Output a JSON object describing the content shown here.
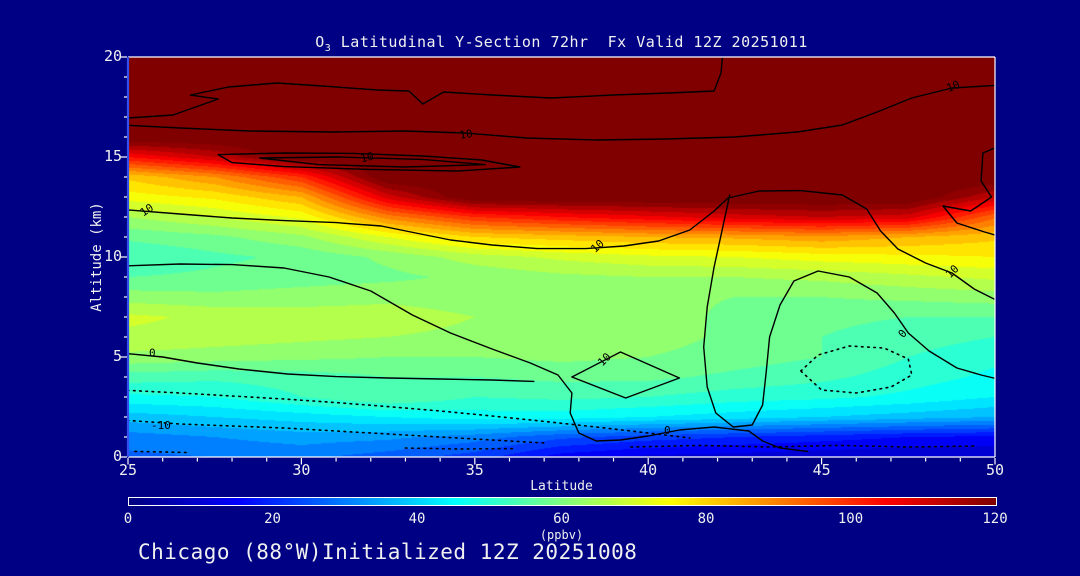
{
  "title": {
    "prefix": "O",
    "sub": "3",
    "rest": " Latitudinal Y-Section 72hr  Fx Valid 12Z 20251011"
  },
  "footer": {
    "text": "Chicago (88°W)Initialized 12Z 20251008"
  },
  "axes": {
    "x": {
      "label": "Latitude",
      "min": 25,
      "max": 50,
      "major_ticks": [
        25,
        30,
        35,
        40,
        45,
        50
      ],
      "minor_step": 1
    },
    "y": {
      "label": "Altitude (km)",
      "min": 0,
      "max": 20,
      "major_ticks": [
        0,
        5,
        10,
        15,
        20
      ],
      "minor_step": 1
    }
  },
  "colorbar": {
    "label": "(ppbv)",
    "min": 0,
    "max": 120,
    "ticks": [
      0,
      20,
      40,
      60,
      80,
      100,
      120
    ]
  },
  "colors": {
    "background": "#000084",
    "text": "#f0f0f0",
    "frame": "#ffffff",
    "left_axis_line": "#3350ef",
    "contour_line": "#000000",
    "tick": "#ffffff"
  },
  "chart_data": {
    "type": "heatmap",
    "title": "O3 Latitudinal Y-Section 72hr Fx Valid 12Z 20251011",
    "xlabel": "Latitude",
    "ylabel": "Altitude (km)",
    "units": "ppbv",
    "colormap": "jet",
    "clim": [
      0,
      120
    ],
    "band_step": 4,
    "x": [
      25,
      27.5,
      30,
      32.5,
      35,
      37.5,
      40,
      42.5,
      45,
      47.5,
      50
    ],
    "y": [
      0,
      1,
      2,
      3,
      4,
      5,
      6,
      7,
      8,
      9,
      10,
      11,
      12,
      13,
      14,
      15,
      16,
      17,
      18,
      19,
      20
    ],
    "values": [
      [
        27,
        28,
        29,
        26,
        22,
        14,
        11,
        10,
        9,
        8,
        8
      ],
      [
        30,
        32,
        34,
        33,
        30,
        25,
        22,
        20,
        18,
        16,
        15
      ],
      [
        38,
        40,
        42,
        44,
        46,
        46,
        44,
        42,
        40,
        38,
        36
      ],
      [
        47,
        48,
        52,
        56,
        52,
        53,
        52,
        50,
        49,
        47,
        44
      ],
      [
        54,
        53,
        54,
        56,
        56,
        57,
        57,
        55,
        53,
        50,
        47
      ],
      [
        63,
        62,
        61,
        60,
        60,
        61,
        60,
        58,
        56,
        52,
        49
      ],
      [
        67,
        66,
        65,
        64,
        63,
        63,
        62,
        59,
        56,
        54,
        52
      ],
      [
        69,
        67,
        66,
        66,
        64,
        63,
        62,
        59,
        57,
        56,
        56
      ],
      [
        62,
        61,
        62,
        63,
        62,
        62,
        61,
        60,
        60,
        61,
        62
      ],
      [
        56,
        57,
        58,
        59,
        61,
        63,
        64,
        64,
        65,
        67,
        69
      ],
      [
        52,
        55,
        57,
        61,
        66,
        69,
        71,
        72,
        74,
        75,
        76
      ],
      [
        57,
        59,
        63,
        72,
        80,
        82,
        84,
        85,
        87,
        84,
        81
      ],
      [
        64,
        68,
        73,
        90,
        100,
        104,
        107,
        110,
        112,
        110,
        93
      ],
      [
        74,
        77,
        84,
        110,
        125,
        125,
        125,
        125,
        125,
        125,
        112
      ],
      [
        81,
        88,
        100,
        125,
        125,
        125,
        125,
        125,
        125,
        125,
        125
      ],
      [
        104,
        112,
        125,
        125,
        125,
        125,
        125,
        125,
        125,
        125,
        125
      ],
      [
        125,
        125,
        125,
        125,
        125,
        125,
        125,
        125,
        125,
        125,
        125
      ],
      [
        125,
        125,
        125,
        125,
        125,
        125,
        125,
        125,
        125,
        125,
        125
      ],
      [
        125,
        125,
        125,
        125,
        125,
        125,
        125,
        125,
        125,
        125,
        125
      ],
      [
        125,
        125,
        125,
        125,
        125,
        125,
        125,
        125,
        125,
        125,
        125
      ],
      [
        125,
        125,
        125,
        125,
        125,
        125,
        125,
        125,
        125,
        125,
        125
      ]
    ],
    "overlay_contours": [
      {
        "level": 10,
        "style": "solid",
        "points": [
          [
            25,
            16.95
          ],
          [
            26.3,
            17.1
          ],
          [
            27.6,
            17.9
          ],
          [
            26.8,
            18.1
          ],
          [
            27.9,
            18.5
          ],
          [
            29.3,
            18.7
          ],
          [
            30.6,
            18.55
          ],
          [
            32.2,
            18.35
          ],
          [
            33.1,
            18.3
          ],
          [
            33.5,
            17.65
          ],
          [
            34.1,
            18.25
          ],
          [
            35.5,
            18.1
          ],
          [
            37.2,
            17.95
          ],
          [
            39,
            18.1
          ],
          [
            40.6,
            18.2
          ],
          [
            41.9,
            18.3
          ],
          [
            42.1,
            19.2
          ],
          [
            42.15,
            20.2
          ]
        ]
      },
      {
        "level": 10,
        "style": "solid",
        "points": [
          [
            24.8,
            16.6
          ],
          [
            26.5,
            16.45
          ],
          [
            28.5,
            16.3
          ],
          [
            30.9,
            16.25
          ],
          [
            33,
            16.3
          ],
          [
            34.7,
            16.2
          ],
          [
            36.5,
            15.95
          ],
          [
            38.5,
            15.85
          ],
          [
            40.5,
            15.9
          ],
          [
            42.5,
            16.0
          ],
          [
            44.3,
            16.25
          ],
          [
            45.6,
            16.6
          ],
          [
            46.6,
            17.25
          ],
          [
            47.6,
            17.95
          ],
          [
            48.76,
            18.45
          ],
          [
            50.2,
            18.6
          ]
        ]
      },
      {
        "level": 10,
        "style": "solid",
        "points": [
          [
            27.6,
            15.12
          ],
          [
            29.5,
            15.2
          ],
          [
            31.5,
            15.18
          ],
          [
            33.5,
            15.05
          ],
          [
            35.2,
            14.85
          ],
          [
            36.3,
            14.5
          ],
          [
            34.5,
            14.3
          ],
          [
            32,
            14.38
          ],
          [
            29.5,
            14.52
          ],
          [
            28,
            14.72
          ],
          [
            27.6,
            15.12
          ]
        ]
      },
      {
        "level": 10,
        "style": "solid",
        "points": [
          [
            28.8,
            14.95
          ],
          [
            31,
            15.0
          ],
          [
            33.5,
            14.88
          ],
          [
            35.3,
            14.62
          ],
          [
            33,
            14.5
          ],
          [
            30.5,
            14.62
          ],
          [
            28.8,
            14.95
          ]
        ]
      },
      {
        "level": 10,
        "style": "solid",
        "points": [
          [
            24.8,
            12.38
          ],
          [
            26.5,
            12.15
          ],
          [
            28,
            11.95
          ],
          [
            29.5,
            11.82
          ],
          [
            31,
            11.72
          ],
          [
            32.3,
            11.55
          ],
          [
            33.3,
            11.2
          ],
          [
            34.3,
            10.85
          ],
          [
            35.5,
            10.6
          ],
          [
            36.8,
            10.42
          ],
          [
            38.2,
            10.42
          ],
          [
            39.3,
            10.55
          ],
          [
            40.3,
            10.8
          ],
          [
            41.2,
            11.35
          ],
          [
            41.9,
            12.3
          ],
          [
            42.3,
            12.95
          ],
          [
            43.2,
            13.3
          ],
          [
            44.4,
            13.32
          ],
          [
            45.6,
            13.1
          ],
          [
            46.3,
            12.4
          ],
          [
            46.7,
            11.3
          ],
          [
            47.2,
            10.4
          ],
          [
            48,
            9.7
          ],
          [
            48.76,
            9.2
          ],
          [
            49.4,
            8.4
          ],
          [
            50.2,
            7.7
          ]
        ]
      },
      {
        "level": 10,
        "style": "solid",
        "points": [
          [
            50.2,
            15.6
          ],
          [
            49.65,
            15.2
          ],
          [
            49.6,
            13.8
          ],
          [
            49.9,
            13.0
          ],
          [
            49.3,
            12.3
          ],
          [
            48.5,
            12.55
          ],
          [
            48.9,
            11.7
          ],
          [
            49.7,
            11.25
          ],
          [
            50.2,
            11.0
          ]
        ]
      },
      {
        "level": 10,
        "style": "solid",
        "points": [
          [
            37.8,
            4.0
          ],
          [
            39.2,
            5.25
          ],
          [
            40.9,
            3.95
          ],
          [
            39.35,
            2.95
          ],
          [
            37.8,
            4.0
          ]
        ]
      },
      {
        "level": 0,
        "style": "solid",
        "points": [
          [
            24.8,
            5.2
          ],
          [
            26,
            5.0
          ],
          [
            27,
            4.7
          ],
          [
            28.2,
            4.4
          ],
          [
            29.6,
            4.15
          ],
          [
            31,
            4.02
          ],
          [
            32.5,
            3.95
          ],
          [
            34,
            3.9
          ],
          [
            35.5,
            3.85
          ],
          [
            36.7,
            3.78
          ]
        ]
      },
      {
        "level": 0,
        "style": "solid",
        "points": [
          [
            24.8,
            9.55
          ],
          [
            26.5,
            9.65
          ],
          [
            28,
            9.62
          ],
          [
            29.5,
            9.45
          ],
          [
            30.8,
            9.0
          ],
          [
            32,
            8.3
          ],
          [
            33.2,
            7.1
          ],
          [
            34.3,
            6.2
          ],
          [
            35.5,
            5.4
          ],
          [
            36.6,
            4.7
          ],
          [
            37.4,
            4.1
          ],
          [
            37.8,
            3.2
          ],
          [
            37.75,
            2.2
          ],
          [
            38.0,
            1.2
          ],
          [
            38.5,
            0.8
          ],
          [
            39.2,
            0.85
          ],
          [
            40.0,
            1.05
          ],
          [
            40.9,
            1.35
          ],
          [
            41.9,
            1.5
          ],
          [
            42.9,
            1.3
          ],
          [
            43.3,
            0.8
          ],
          [
            43.8,
            0.45
          ],
          [
            44.6,
            0.28
          ]
        ]
      },
      {
        "level": 0,
        "style": "solid",
        "points": [
          [
            42.35,
            13.1
          ],
          [
            42.15,
            11.5
          ],
          [
            41.9,
            9.5
          ],
          [
            41.7,
            7.5
          ],
          [
            41.6,
            5.5
          ],
          [
            41.7,
            3.5
          ],
          [
            41.95,
            2.2
          ],
          [
            42.45,
            1.5
          ],
          [
            43.0,
            1.6
          ],
          [
            43.3,
            2.6
          ],
          [
            43.4,
            4.2
          ],
          [
            43.5,
            6.0
          ],
          [
            43.8,
            7.6
          ],
          [
            44.2,
            8.8
          ],
          [
            44.9,
            9.3
          ],
          [
            45.8,
            9.0
          ],
          [
            46.6,
            8.2
          ],
          [
            47.1,
            7.2
          ],
          [
            47.5,
            6.2
          ],
          [
            48.1,
            5.3
          ],
          [
            48.9,
            4.45
          ],
          [
            49.6,
            4.1
          ],
          [
            50.2,
            3.85
          ]
        ]
      },
      {
        "level": -10,
        "style": "dotted",
        "points": [
          [
            24.8,
            1.85
          ],
          [
            26.5,
            1.65
          ],
          [
            28,
            1.55
          ],
          [
            29.5,
            1.45
          ],
          [
            31,
            1.3
          ],
          [
            32.5,
            1.15
          ],
          [
            34,
            1.0
          ],
          [
            35.5,
            0.85
          ],
          [
            37,
            0.7
          ]
        ]
      },
      {
        "level": -10,
        "style": "dotted",
        "points": [
          [
            24.8,
            3.35
          ],
          [
            26.5,
            3.2
          ],
          [
            28,
            3.05
          ],
          [
            29.5,
            2.9
          ],
          [
            31,
            2.72
          ],
          [
            32.5,
            2.52
          ],
          [
            34,
            2.3
          ],
          [
            35.5,
            2.05
          ],
          [
            37,
            1.78
          ],
          [
            38.5,
            1.5
          ],
          [
            40,
            1.2
          ],
          [
            41.2,
            0.95
          ]
        ]
      },
      {
        "level": -10,
        "style": "dotted",
        "points": [
          [
            44.4,
            4.3
          ],
          [
            44.9,
            5.1
          ],
          [
            45.8,
            5.55
          ],
          [
            46.8,
            5.45
          ],
          [
            47.5,
            4.9
          ],
          [
            47.6,
            4.1
          ],
          [
            47.0,
            3.5
          ],
          [
            46.0,
            3.2
          ],
          [
            45.0,
            3.35
          ],
          [
            44.4,
            4.3
          ]
        ]
      },
      {
        "level": -10,
        "style": "dotted",
        "points": [
          [
            33,
            0.45
          ],
          [
            34.5,
            0.4
          ],
          [
            36.2,
            0.42
          ]
        ]
      },
      {
        "level": -10,
        "style": "dotted",
        "points": [
          [
            39.5,
            0.5
          ],
          [
            41.5,
            0.58
          ],
          [
            43.5,
            0.5
          ],
          [
            45.5,
            0.58
          ],
          [
            47.5,
            0.5
          ],
          [
            49.5,
            0.55
          ]
        ]
      },
      {
        "level": -10,
        "style": "dotted",
        "points": [
          [
            25.2,
            0.28
          ],
          [
            26.8,
            0.22
          ]
        ]
      }
    ],
    "contour_labels": [
      {
        "text": "10",
        "lat": 25.55,
        "alt": 12.32,
        "rot": -33
      },
      {
        "text": "10",
        "lat": 31.9,
        "alt": 14.95,
        "rot": -12
      },
      {
        "text": "10",
        "lat": 34.75,
        "alt": 16.1,
        "rot": -8
      },
      {
        "text": "10",
        "lat": 38.55,
        "alt": 10.52,
        "rot": -42
      },
      {
        "text": "10",
        "lat": 48.8,
        "alt": 18.5,
        "rot": -22
      },
      {
        "text": "10",
        "lat": 48.78,
        "alt": 9.25,
        "rot": -45
      },
      {
        "text": "10",
        "lat": 38.75,
        "alt": 4.85,
        "rot": -45
      },
      {
        "text": "0",
        "lat": 25.7,
        "alt": 5.18,
        "rot": 0
      },
      {
        "text": "0",
        "lat": 40.55,
        "alt": 1.3,
        "rot": 0
      },
      {
        "text": "0",
        "lat": 47.35,
        "alt": 6.15,
        "rot": -50
      },
      {
        "text": "-10",
        "lat": 25.95,
        "alt": 1.55,
        "rot": 0
      }
    ]
  }
}
